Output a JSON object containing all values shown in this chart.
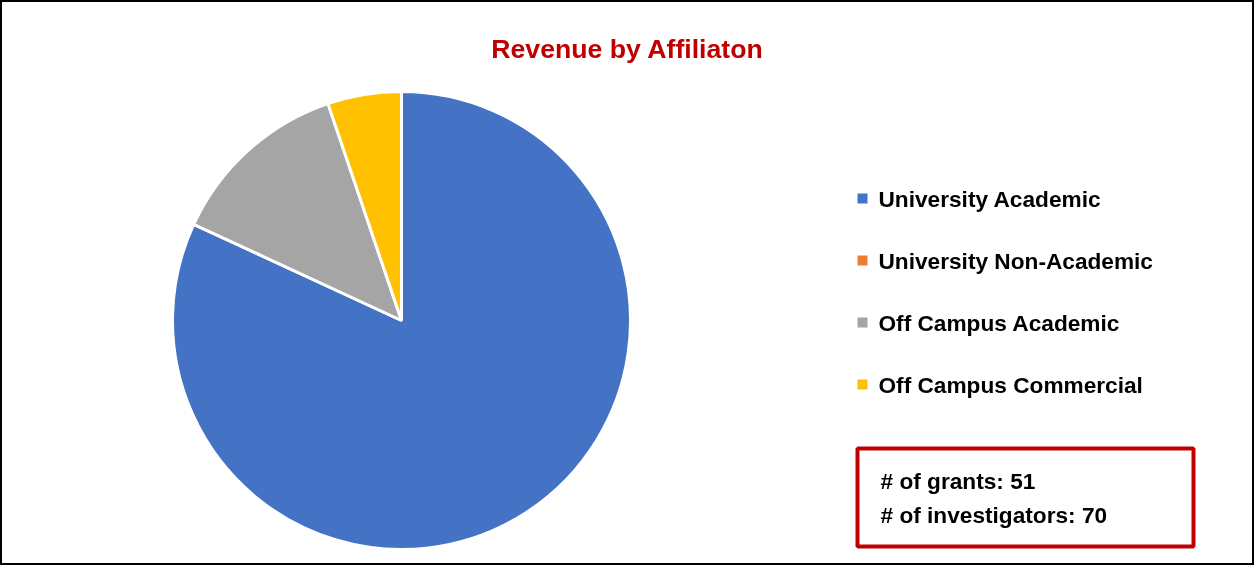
{
  "chart_data": {
    "type": "pie",
    "title": "Revenue by Affiliaton",
    "categories": [
      "University Academic",
      "University Non-Academic",
      "Off Campus Academic",
      "Off Campus Commercial"
    ],
    "values": [
      81.9,
      0,
      12.9,
      5.2
    ],
    "colors": [
      "#4472c4",
      "#ed7d31",
      "#a5a5a5",
      "#ffc000"
    ],
    "legend": "right",
    "annotations": [
      "# of grants:  51",
      "# of investigators:  70"
    ]
  }
}
